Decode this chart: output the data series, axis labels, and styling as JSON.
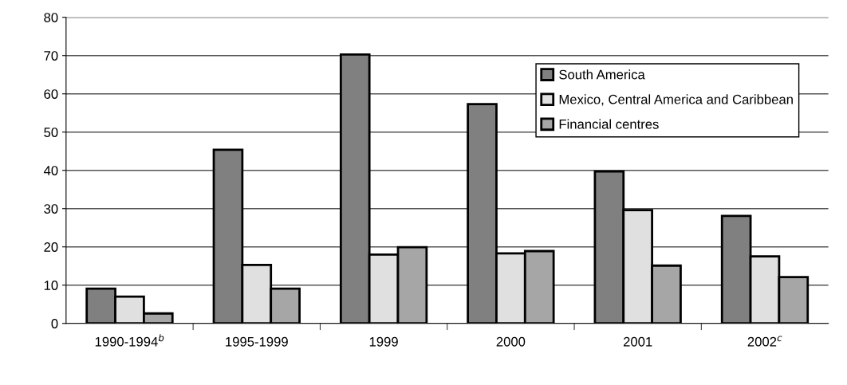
{
  "chart_data": {
    "type": "bar",
    "categories": [
      "1990-1994$^{b}$",
      "1995-1999",
      "1999",
      "2000",
      "2001",
      "2002$^{c}$"
    ],
    "series": [
      {
        "name": "South America",
        "color": "#808080",
        "values": [
          9.1,
          45.4,
          70.3,
          57.3,
          39.7,
          28.1
        ]
      },
      {
        "name": "Mexico, Central America and Caribbean",
        "color": "#e0e0e0",
        "values": [
          7.0,
          15.3,
          18.0,
          18.3,
          29.6,
          17.5
        ]
      },
      {
        "name": "Financial centres",
        "color": "#a6a6a6",
        "values": [
          2.6,
          9.1,
          19.9,
          18.9,
          15.1,
          12.1
        ]
      }
    ],
    "ylim": [
      0,
      80
    ],
    "yticks": [
      0,
      10,
      20,
      30,
      40,
      50,
      60,
      70,
      80
    ],
    "grid": "y",
    "legend": "top right"
  }
}
